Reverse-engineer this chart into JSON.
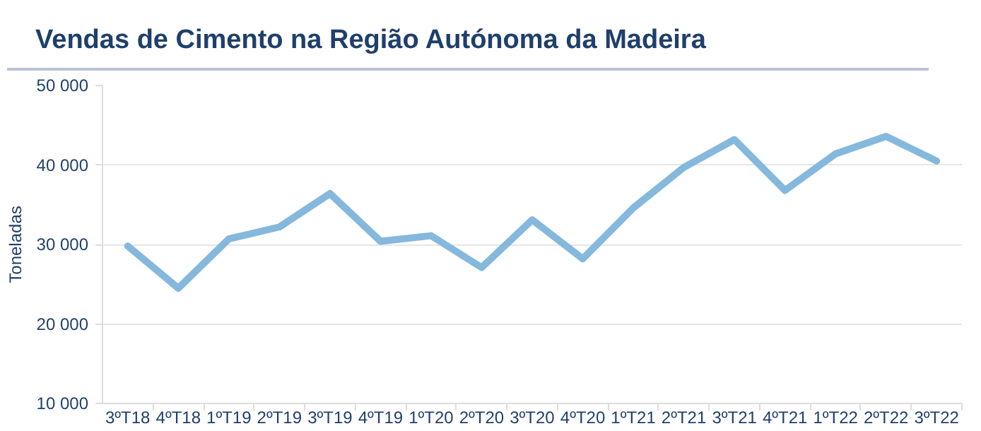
{
  "chart_data": {
    "type": "line",
    "title": "Vendas de Cimento na Região Autónoma da Madeira",
    "ylabel": "Toneladas",
    "categories": [
      "3ºT18",
      "4ºT18",
      "1ºT19",
      "2ºT19",
      "3ºT19",
      "4ºT19",
      "1ºT20",
      "2ºT20",
      "3ºT20",
      "4ºT20",
      "1ºT21",
      "2ºT21",
      "3ºT21",
      "4ºT21",
      "1ºT22",
      "2ºT22",
      "3ºT22"
    ],
    "series": [
      {
        "color": "#85b8dd",
        "values": [
          29800,
          24500,
          30700,
          32200,
          36400,
          30400,
          31100,
          27100,
          33100,
          28200,
          34600,
          39700,
          43200,
          36800,
          41400,
          43600,
          40500
        ]
      }
    ],
    "ylim": [
      10000,
      50000
    ],
    "yticks": [
      {
        "value": 10000,
        "label": "10 000"
      },
      {
        "value": 20000,
        "label": "20 000"
      },
      {
        "value": 30000,
        "label": "30 000"
      },
      {
        "value": 40000,
        "label": "40 000"
      },
      {
        "value": 50000,
        "label": "50 000"
      }
    ],
    "grid": "y",
    "marker": "none",
    "line_style": "solid"
  }
}
